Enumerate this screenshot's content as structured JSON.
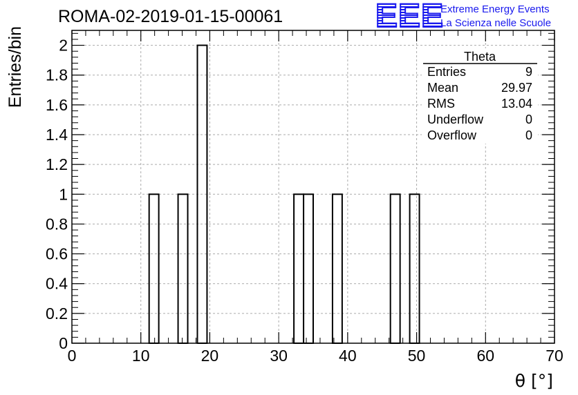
{
  "title": "ROMA-02-2019-01-15-00061",
  "logo": {
    "mark": "EEE",
    "line1": "Extreme Energy Events",
    "line2": "La Scienza nelle Scuole",
    "color": "#1a1aee"
  },
  "stats_box": {
    "name": "Theta",
    "rows": [
      {
        "label": "Entries",
        "value": "9"
      },
      {
        "label": "Mean",
        "value": "29.97"
      },
      {
        "label": "RMS",
        "value": "13.04"
      },
      {
        "label": "Underflow",
        "value": "0"
      },
      {
        "label": "Overflow",
        "value": "0"
      }
    ]
  },
  "chart_data": {
    "type": "bar",
    "title": "ROMA-02-2019-01-15-00061",
    "xlabel": "θ [°]",
    "ylabel": "Entries/bin",
    "xlim": [
      0,
      70
    ],
    "ylim": [
      0,
      2.1
    ],
    "bin_width": 1.4,
    "x_ticks": [
      0,
      10,
      20,
      30,
      40,
      50,
      60,
      70
    ],
    "y_ticks": [
      0,
      0.2,
      0.4,
      0.6,
      0.8,
      1,
      1.2,
      1.4,
      1.6,
      1.8,
      2
    ],
    "y_tick_labels": [
      "0",
      "0.2",
      "0.4",
      "0.6",
      "0.8",
      "1",
      "1.2",
      "1.4",
      "1.6",
      "1.8",
      "2"
    ],
    "grid": true,
    "bins": [
      {
        "x_low": 11.2,
        "x_high": 12.6,
        "count": 1
      },
      {
        "x_low": 15.4,
        "x_high": 16.8,
        "count": 1
      },
      {
        "x_low": 18.2,
        "x_high": 19.6,
        "count": 2
      },
      {
        "x_low": 32.2,
        "x_high": 33.6,
        "count": 1
      },
      {
        "x_low": 33.6,
        "x_high": 35.0,
        "count": 1
      },
      {
        "x_low": 37.8,
        "x_high": 39.2,
        "count": 1
      },
      {
        "x_low": 46.2,
        "x_high": 47.6,
        "count": 1
      },
      {
        "x_low": 49.0,
        "x_high": 50.4,
        "count": 1
      }
    ]
  }
}
